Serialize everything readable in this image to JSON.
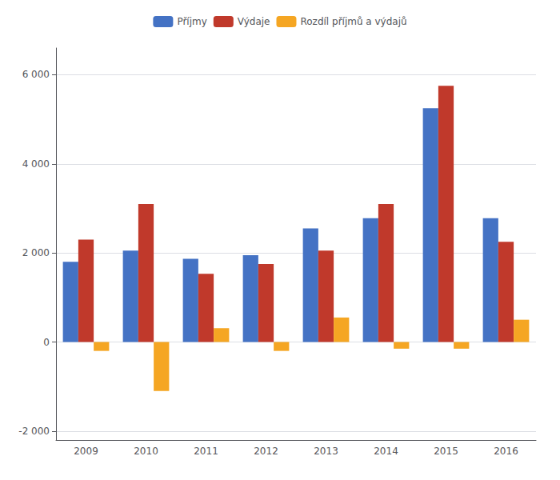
{
  "chart_data": {
    "type": "bar",
    "categories": [
      "2009",
      "2010",
      "2011",
      "2012",
      "2013",
      "2014",
      "2015",
      "2016"
    ],
    "series": [
      {
        "name": "Příjmy",
        "color": "#4472C4",
        "values": [
          1800,
          2050,
          1870,
          1950,
          2550,
          2780,
          5250,
          2780
        ]
      },
      {
        "name": "Výdaje",
        "color": "#C0392B",
        "values": [
          2300,
          3100,
          1530,
          1750,
          2050,
          3100,
          5750,
          2250
        ]
      },
      {
        "name": "Rozdíl příjmů a výdajů",
        "color": "#F5A623",
        "values": [
          -200,
          -1100,
          310,
          -200,
          550,
          -150,
          -150,
          500
        ]
      }
    ],
    "ylim": [
      -2200,
      6600
    ],
    "yticks": [
      {
        "value": -2000,
        "label": "-2 000"
      },
      0,
      {
        "value": 2000,
        "label": "2 000"
      },
      {
        "value": 4000,
        "label": "4 000"
      },
      {
        "value": 6000,
        "label": "6 000"
      }
    ],
    "grid": true,
    "legend": "top"
  }
}
